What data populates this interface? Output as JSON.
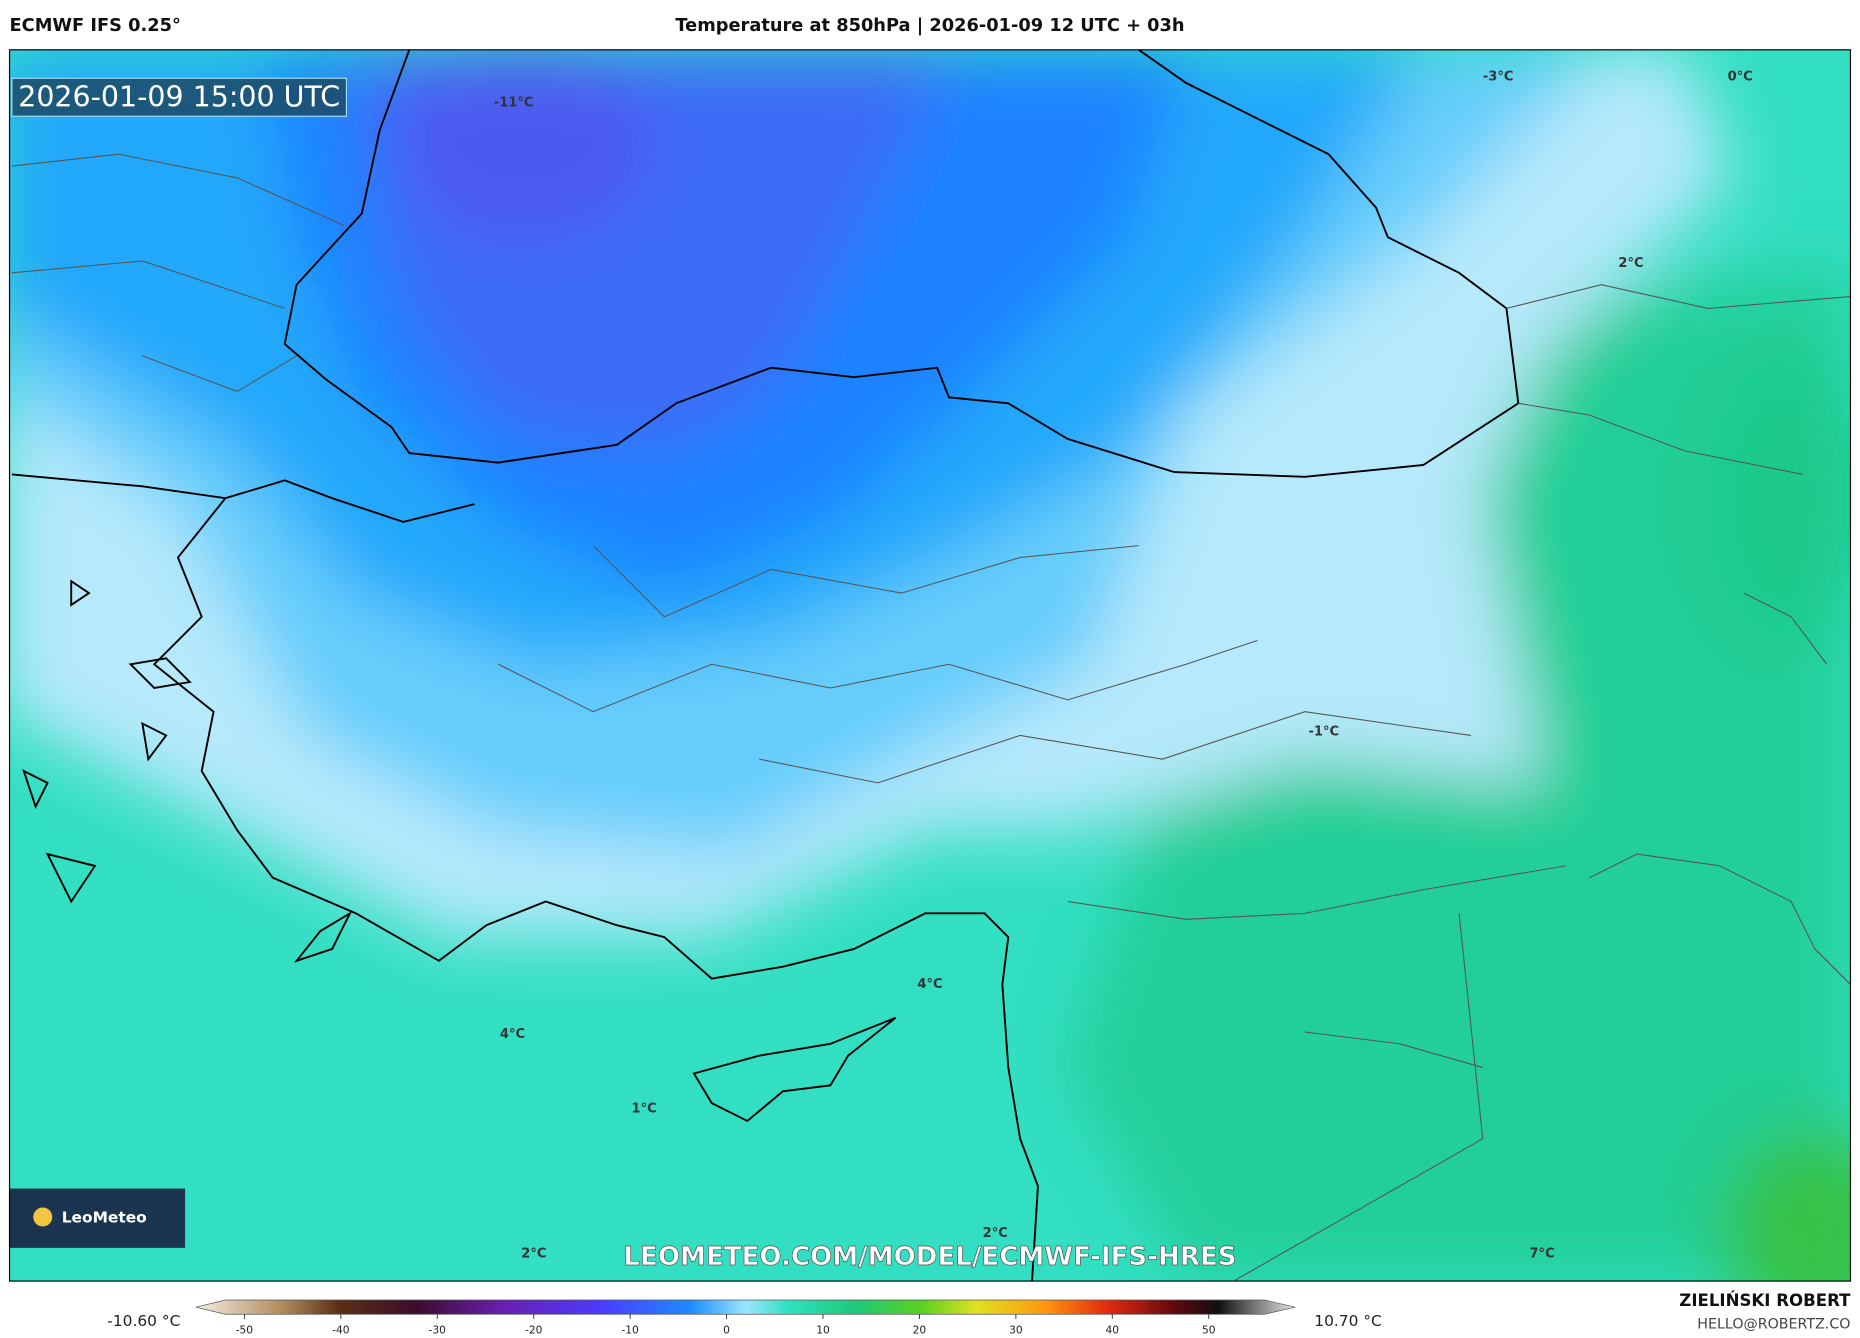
{
  "header": {
    "model": "ECMWF IFS 0.25°",
    "title": "Temperature at 850hPa | 2026-01-09 12 UTC + 03h"
  },
  "map": {
    "timestamp": "2026-01-09 15:00 UTC",
    "contour_labels": [
      "-11°C",
      "-3°C",
      "0°C",
      "2°C",
      "-1°C",
      "4°C",
      "4°C",
      "1°C",
      "2°C",
      "2°C",
      "7°C"
    ],
    "watermark": "LEOMETEO.COM/MODEL/ECMWF-IFS-HRES"
  },
  "logo": {
    "text": "LeoMeteo"
  },
  "colorbar": {
    "min_label": "-10.60 °C",
    "max_label": "10.70 °C",
    "ticks": [
      -50,
      -40,
      -30,
      -20,
      -10,
      0,
      10,
      20,
      30,
      40,
      50
    ]
  },
  "footer": {
    "author": "ZIELIŃSKI ROBERT",
    "email": "HELLO@ROBERTZ.CO"
  }
}
